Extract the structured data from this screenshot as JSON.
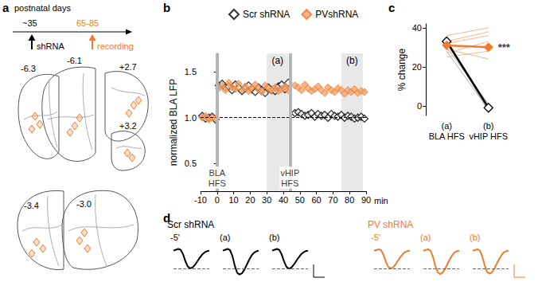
{
  "panel_labels": [
    "a",
    "b",
    "c",
    "d"
  ],
  "timeline": {
    "axis_label": "postnatal days",
    "start": "~35",
    "end": "65-85",
    "start_event": "shRNA",
    "end_event": "recording"
  },
  "sections": [
    "-6.3",
    "-6.1",
    "+2.7",
    "+3.2",
    "-3.4",
    "-3.0"
  ],
  "chart_data": [
    {
      "type": "scatter",
      "x_label": "min",
      "y_label": "normalized BLA LFP",
      "legend": "top",
      "grid": false,
      "xlim": [
        -10,
        90
      ],
      "xticks": [
        -10,
        0,
        10,
        20,
        30,
        40,
        50,
        60,
        70,
        80,
        90
      ],
      "ylim": [
        0.2,
        1.7
      ],
      "yticks": [
        0.5,
        {
          "value": 1,
          "label": "1.0"
        },
        1.5
      ],
      "reference_line": 1,
      "regions": [
        {
          "from": 30,
          "to": 43,
          "label": "(a)"
        },
        {
          "from": 75,
          "to": 88,
          "label": "(b)"
        }
      ],
      "events": [
        {
          "x": 0,
          "label": "BLA\nHFS"
        },
        {
          "x": 44,
          "label": "vHIP\nHFS"
        }
      ],
      "x": [
        -9,
        -7,
        -5,
        -3,
        -1,
        1,
        3,
        5,
        7,
        9,
        11,
        13,
        15,
        17,
        19,
        21,
        23,
        25,
        27,
        29,
        31,
        33,
        35,
        37,
        39,
        41,
        43,
        47,
        49,
        51,
        53,
        55,
        57,
        59,
        61,
        63,
        65,
        67,
        69,
        71,
        73,
        75,
        77,
        79,
        81,
        83,
        85,
        87,
        89
      ],
      "series": [
        {
          "name": "Scr shRNA",
          "color": "#000000",
          "marker": "open_diamond",
          "values": [
            1.02,
            0.99,
            1.0,
            1.01,
            0.98,
            1.35,
            1.37,
            1.33,
            1.34,
            1.3,
            1.36,
            1.33,
            1.29,
            1.32,
            1.35,
            1.31,
            1.28,
            1.33,
            1.3,
            1.27,
            1.33,
            1.3,
            1.29,
            1.34,
            1.36,
            1.31,
            1.38,
            1.05,
            1.06,
            1.04,
            1.02,
            1.03,
            1.05,
            1.01,
            1.04,
            1.02,
            1.03,
            1.0,
            1.04,
            1.02,
            1.01,
            1.03,
            1.0,
            1.02,
            1.01,
            0.99,
            1.0,
            1.01,
            0.99
          ]
        },
        {
          "name": "PVshRNA",
          "color": "#f5a36a",
          "marker": "diamond",
          "values": [
            1.0,
            1.02,
            0.98,
            1.0,
            0.99,
            1.32,
            1.35,
            1.3,
            1.38,
            1.33,
            1.31,
            1.37,
            1.3,
            1.34,
            1.29,
            1.33,
            1.36,
            1.31,
            1.28,
            1.35,
            1.32,
            1.3,
            1.33,
            1.29,
            1.31,
            1.34,
            1.3,
            1.35,
            1.33,
            1.3,
            1.36,
            1.32,
            1.29,
            1.31,
            1.34,
            1.3,
            1.27,
            1.33,
            1.3,
            1.28,
            1.32,
            1.3,
            1.26,
            1.3,
            1.28,
            1.31,
            1.27,
            1.29,
            1.28
          ]
        }
      ]
    },
    {
      "type": "line",
      "y_label": "% change",
      "grid": false,
      "categories": [
        "(a)\nBLA HFS",
        "(b)\nvHIP HFS"
      ],
      "ylim": [
        -5,
        42
      ],
      "yticks": [
        0,
        20,
        40
      ],
      "series": [
        {
          "color": "#b0b0b0",
          "line_style": "thin",
          "values": [
            34,
            -3
          ]
        },
        {
          "color": "#b0b0b0",
          "line_style": "thin",
          "values": [
            30,
            1
          ]
        },
        {
          "color": "#b0b0b0",
          "line_style": "thin",
          "values": [
            28,
            -2
          ]
        },
        {
          "color": "#f6b98c",
          "line_style": "thin",
          "values": [
            36,
            40
          ]
        },
        {
          "color": "#f6b98c",
          "line_style": "thin",
          "values": [
            29,
            24
          ]
        },
        {
          "color": "#f6b98c",
          "line_style": "thin",
          "values": [
            25,
            28
          ]
        },
        {
          "color": "#f6b98c",
          "line_style": "thin",
          "values": [
            32,
            36
          ]
        },
        {
          "color": "#f6b98c",
          "line_style": "thin",
          "values": [
            27,
            33
          ]
        },
        {
          "color": "#f6b98c",
          "line_style": "thin",
          "values": [
            33,
            38
          ]
        },
        {
          "color": "#000000",
          "line_style": "thick",
          "marker": "open_diamond",
          "values": [
            33,
            -1
          ]
        },
        {
          "color": "#f07b31",
          "line_style": "thick",
          "marker": "diamond",
          "values": [
            31,
            30
          ]
        }
      ],
      "annotations": [
        {
          "text": "***",
          "category": 1,
          "y": 30
        }
      ]
    },
    {
      "type": "line",
      "tick_labels": false,
      "x": [
        0,
        1,
        2,
        3,
        4,
        5,
        6,
        7,
        8,
        9,
        10,
        11,
        12,
        13,
        14,
        15
      ],
      "xlim": [
        0,
        15
      ],
      "ylim": [
        -1.5,
        0.3
      ],
      "panels": [
        {
          "title": "Scr shRNA",
          "color": "#000000",
          "traces": [
            {
              "label": "-5'",
              "values": [
                0,
                0.05,
                0.1,
                0.05,
                -0.2,
                -0.6,
                -0.9,
                -1.0,
                -0.95,
                -0.8,
                -0.6,
                -0.4,
                -0.22,
                -0.1,
                -0.03,
                0
              ]
            },
            {
              "label": "(a)",
              "values": [
                0,
                0.05,
                0.1,
                0.03,
                -0.3,
                -0.85,
                -1.25,
                -1.35,
                -1.28,
                -1.08,
                -0.8,
                -0.52,
                -0.28,
                -0.12,
                -0.04,
                0
              ]
            },
            {
              "label": "(b)",
              "values": [
                0,
                0.05,
                0.1,
                0.04,
                -0.22,
                -0.62,
                -0.92,
                -1.02,
                -0.96,
                -0.8,
                -0.6,
                -0.4,
                -0.22,
                -0.1,
                -0.03,
                0
              ]
            }
          ]
        },
        {
          "title": "PV shRNA",
          "color": "#f07b31",
          "traces": [
            {
              "label": "-5'",
              "values": [
                0,
                0.04,
                0.08,
                0.02,
                -0.25,
                -0.65,
                -0.92,
                -1.0,
                -0.94,
                -0.78,
                -0.57,
                -0.37,
                -0.2,
                -0.08,
                -0.02,
                0
              ]
            },
            {
              "label": "(a)",
              "values": [
                0,
                0.04,
                0.08,
                0.0,
                -0.35,
                -0.85,
                -1.22,
                -1.32,
                -1.25,
                -1.05,
                -0.78,
                -0.5,
                -0.27,
                -0.11,
                -0.03,
                0
              ]
            },
            {
              "label": "(b)",
              "values": [
                0,
                0.04,
                0.08,
                0.0,
                -0.33,
                -0.83,
                -1.2,
                -1.3,
                -1.23,
                -1.03,
                -0.76,
                -0.49,
                -0.26,
                -0.1,
                -0.03,
                0
              ]
            }
          ]
        }
      ]
    }
  ]
}
